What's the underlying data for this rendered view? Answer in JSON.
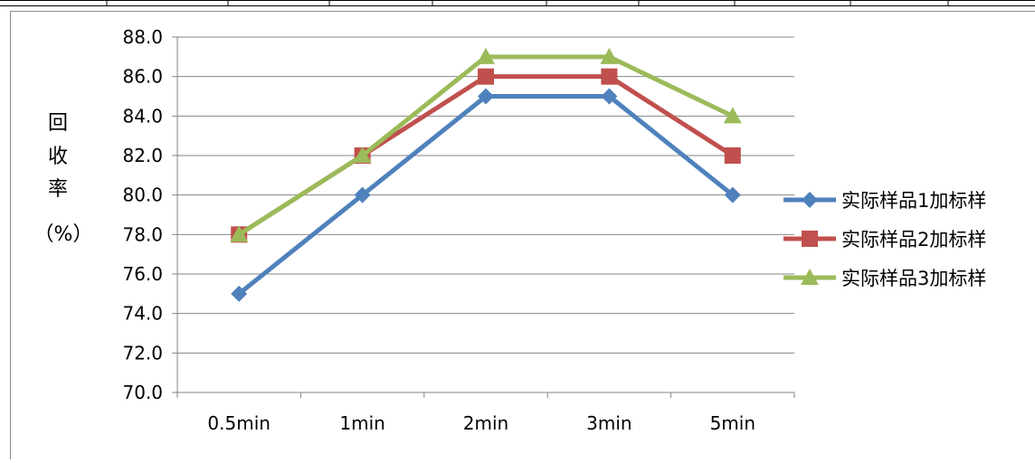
{
  "chart_data": {
    "type": "line",
    "categories": [
      "0.5min",
      "1min",
      "2min",
      "3min",
      "5min"
    ],
    "series": [
      {
        "name": "实际样品1加标样",
        "values": [
          75.0,
          80.0,
          85.0,
          85.0,
          80.0
        ],
        "color": "#4F81BD",
        "marker": "diamond"
      },
      {
        "name": "实际样品2加标样",
        "values": [
          78.0,
          82.0,
          86.0,
          86.0,
          82.0
        ],
        "color": "#C0504D",
        "marker": "square"
      },
      {
        "name": "实际样品3加标样",
        "values": [
          78.0,
          82.0,
          87.0,
          87.0,
          84.0
        ],
        "color": "#9BBB59",
        "marker": "triangle"
      }
    ],
    "ylim": [
      70.0,
      88.0
    ],
    "yticks": [
      "70.0",
      "72.0",
      "74.0",
      "76.0",
      "78.0",
      "80.0",
      "82.0",
      "84.0",
      "86.0",
      "88.0"
    ],
    "ylabel_chars": [
      "回",
      "收",
      "率"
    ],
    "ylabel_unit": "（%）",
    "grid": true,
    "legend_position": "right"
  }
}
